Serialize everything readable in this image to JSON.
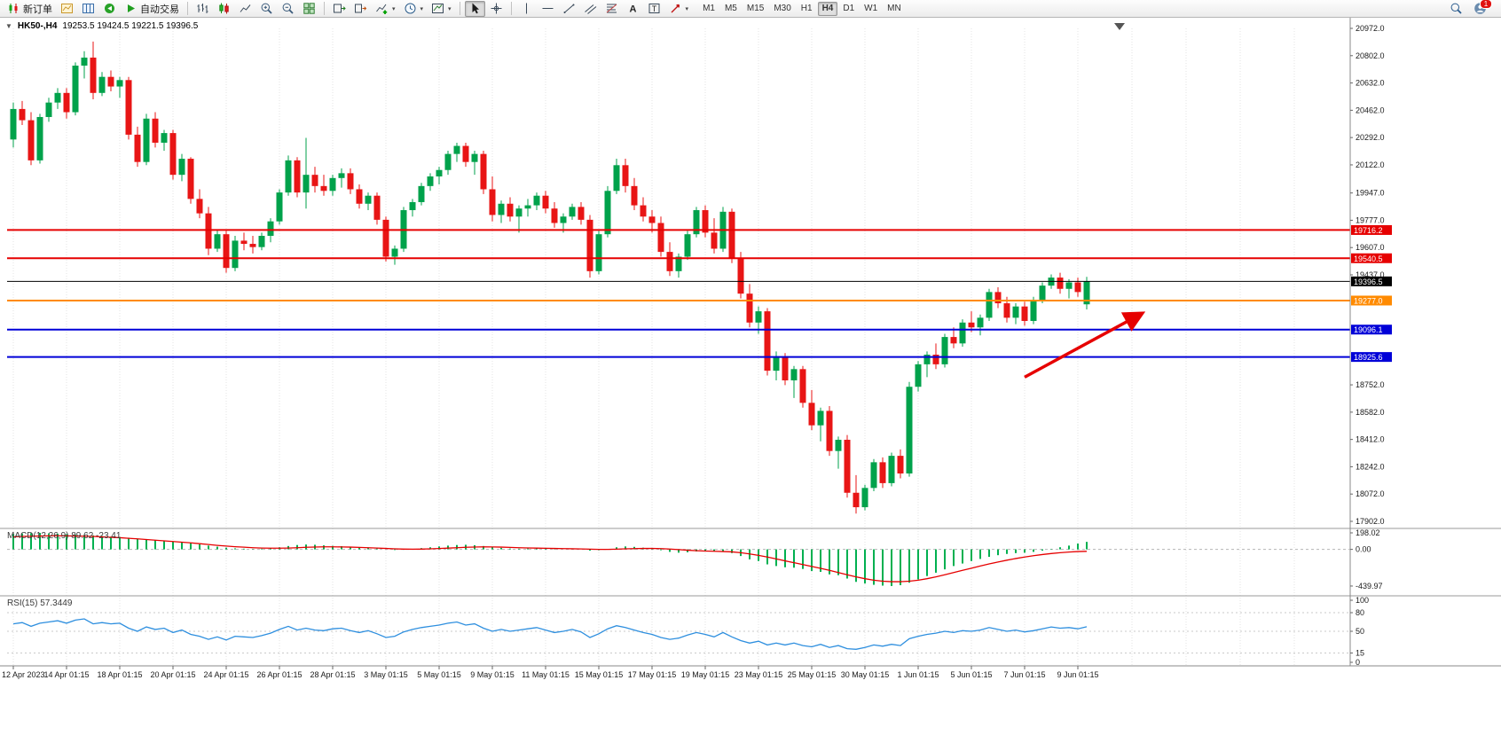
{
  "toolbar": {
    "new_order_label": "新订单",
    "autotrading_label": "自动交易",
    "timeframes": [
      "M1",
      "M5",
      "M15",
      "M30",
      "H1",
      "H4",
      "D1",
      "W1",
      "MN"
    ],
    "active_timeframe": "H4",
    "notification_badge": "1"
  },
  "chart": {
    "collapse_arrow": "▼",
    "symbol_period": "HK50-,H4",
    "ohlc": "19253.5 19424.5 19221.5 19396.5"
  },
  "chart_data": {
    "type": "candlestick",
    "symbol": "HK50-",
    "period": "H4",
    "colors": {
      "up": "#00a24b",
      "down": "#e81515",
      "macd_hist": "#00b050",
      "macd_signal": "#e60000",
      "rsi": "#2e8fdf",
      "grid": "#e3e3e3"
    },
    "price_axis": {
      "min": 17902.0,
      "max": 20972.0,
      "ticks": [
        20972.0,
        20802.0,
        20632.0,
        20462.0,
        20292.0,
        20122.0,
        19947.0,
        19777.0,
        19607.0,
        19437.0,
        18752.0,
        18582.0,
        18412.0,
        18242.0,
        18072.0,
        17902.0
      ]
    },
    "hlines": [
      {
        "price": 19716.2,
        "color": "#e60000",
        "width": 2
      },
      {
        "price": 19540.5,
        "color": "#e60000",
        "width": 2
      },
      {
        "price": 19396.5,
        "color": "#000000",
        "width": 1
      },
      {
        "price": 19277.0,
        "color": "#ff8a00",
        "width": 2
      },
      {
        "price": 19096.1,
        "color": "#0000d8",
        "width": 2
      },
      {
        "price": 18925.6,
        "color": "#0000d8",
        "width": 2
      }
    ],
    "candles": [
      [
        20280,
        20510,
        20230,
        20470
      ],
      [
        20470,
        20520,
        20370,
        20400
      ],
      [
        20400,
        20450,
        20120,
        20150
      ],
      [
        20150,
        20440,
        20130,
        20420
      ],
      [
        20420,
        20540,
        20390,
        20510
      ],
      [
        20510,
        20600,
        20470,
        20570
      ],
      [
        20570,
        20600,
        20410,
        20450
      ],
      [
        20450,
        20760,
        20430,
        20740
      ],
      [
        20740,
        20830,
        20660,
        20790
      ],
      [
        20790,
        20890,
        20530,
        20570
      ],
      [
        20570,
        20700,
        20550,
        20670
      ],
      [
        20670,
        20710,
        20580,
        20610
      ],
      [
        20610,
        20670,
        20540,
        20650
      ],
      [
        20650,
        20670,
        20280,
        20310
      ],
      [
        20310,
        20360,
        20110,
        20140
      ],
      [
        20140,
        20440,
        20120,
        20410
      ],
      [
        20410,
        20450,
        20230,
        20260
      ],
      [
        20260,
        20340,
        20210,
        20320
      ],
      [
        20320,
        20340,
        20030,
        20060
      ],
      [
        20060,
        20190,
        20020,
        20160
      ],
      [
        20160,
        20170,
        19880,
        19910
      ],
      [
        19910,
        19970,
        19790,
        19820
      ],
      [
        19820,
        19860,
        19560,
        19600
      ],
      [
        19600,
        19720,
        19580,
        19690
      ],
      [
        19690,
        19710,
        19450,
        19480
      ],
      [
        19480,
        19680,
        19460,
        19650
      ],
      [
        19650,
        19700,
        19590,
        19630
      ],
      [
        19630,
        19680,
        19570,
        19610
      ],
      [
        19610,
        19700,
        19590,
        19680
      ],
      [
        19680,
        19790,
        19640,
        19770
      ],
      [
        19770,
        19970,
        19750,
        19950
      ],
      [
        19950,
        20180,
        19930,
        20150
      ],
      [
        20150,
        20170,
        19920,
        19950
      ],
      [
        19950,
        20290,
        19850,
        20060
      ],
      [
        20060,
        20110,
        19950,
        19990
      ],
      [
        19990,
        20060,
        19930,
        19960
      ],
      [
        19960,
        20060,
        19930,
        20040
      ],
      [
        20040,
        20100,
        19980,
        20070
      ],
      [
        20070,
        20100,
        19940,
        19970
      ],
      [
        19970,
        20000,
        19850,
        19880
      ],
      [
        19880,
        19950,
        19840,
        19930
      ],
      [
        19930,
        19950,
        19750,
        19780
      ],
      [
        19780,
        19800,
        19520,
        19550
      ],
      [
        19550,
        19620,
        19500,
        19600
      ],
      [
        19600,
        19860,
        19580,
        19840
      ],
      [
        19840,
        19910,
        19800,
        19890
      ],
      [
        19890,
        20010,
        19870,
        19990
      ],
      [
        19990,
        20070,
        19960,
        20050
      ],
      [
        20050,
        20110,
        20000,
        20090
      ],
      [
        20090,
        20210,
        20060,
        20190
      ],
      [
        20190,
        20260,
        20140,
        20240
      ],
      [
        20240,
        20260,
        20110,
        20140
      ],
      [
        20140,
        20210,
        20060,
        20190
      ],
      [
        20190,
        20210,
        19940,
        19970
      ],
      [
        19970,
        20050,
        19770,
        19810
      ],
      [
        19810,
        19900,
        19760,
        19880
      ],
      [
        19880,
        19920,
        19770,
        19800
      ],
      [
        19800,
        19870,
        19700,
        19850
      ],
      [
        19850,
        19910,
        19800,
        19870
      ],
      [
        19870,
        19950,
        19840,
        19930
      ],
      [
        19930,
        19960,
        19820,
        19850
      ],
      [
        19850,
        19890,
        19730,
        19760
      ],
      [
        19760,
        19820,
        19700,
        19800
      ],
      [
        19800,
        19880,
        19780,
        19860
      ],
      [
        19860,
        19890,
        19750,
        19780
      ],
      [
        19780,
        19810,
        19420,
        19460
      ],
      [
        19460,
        19710,
        19440,
        19690
      ],
      [
        19690,
        19990,
        19670,
        19960
      ],
      [
        19960,
        20160,
        19940,
        20120
      ],
      [
        20120,
        20160,
        19950,
        19990
      ],
      [
        19990,
        20040,
        19840,
        19870
      ],
      [
        19870,
        19920,
        19770,
        19800
      ],
      [
        19800,
        19840,
        19700,
        19760
      ],
      [
        19760,
        19800,
        19550,
        19580
      ],
      [
        19580,
        19640,
        19430,
        19460
      ],
      [
        19460,
        19570,
        19420,
        19550
      ],
      [
        19550,
        19710,
        19530,
        19690
      ],
      [
        19690,
        19860,
        19670,
        19840
      ],
      [
        19840,
        19870,
        19670,
        19700
      ],
      [
        19700,
        19790,
        19570,
        19600
      ],
      [
        19600,
        19860,
        19580,
        19830
      ],
      [
        19830,
        19850,
        19510,
        19540
      ],
      [
        19540,
        19580,
        19290,
        19320
      ],
      [
        19320,
        19380,
        19110,
        19140
      ],
      [
        19140,
        19240,
        19070,
        19210
      ],
      [
        19210,
        19230,
        18810,
        18840
      ],
      [
        18840,
        18960,
        18780,
        18930
      ],
      [
        18930,
        18950,
        18750,
        18780
      ],
      [
        18780,
        18870,
        18670,
        18850
      ],
      [
        18850,
        18870,
        18610,
        18640
      ],
      [
        18640,
        18720,
        18470,
        18500
      ],
      [
        18500,
        18610,
        18400,
        18590
      ],
      [
        18590,
        18620,
        18310,
        18340
      ],
      [
        18340,
        18430,
        18230,
        18410
      ],
      [
        18410,
        18440,
        18050,
        18080
      ],
      [
        18080,
        18190,
        17950,
        17990
      ],
      [
        17990,
        18130,
        17970,
        18110
      ],
      [
        18110,
        18290,
        18090,
        18270
      ],
      [
        18270,
        18300,
        18110,
        18140
      ],
      [
        18140,
        18330,
        18120,
        18310
      ],
      [
        18310,
        18350,
        18170,
        18200
      ],
      [
        18200,
        18770,
        18180,
        18740
      ],
      [
        18740,
        18900,
        18710,
        18880
      ],
      [
        18880,
        18960,
        18800,
        18940
      ],
      [
        18940,
        19010,
        18850,
        18880
      ],
      [
        18880,
        19070,
        18860,
        19050
      ],
      [
        19050,
        19110,
        18980,
        19010
      ],
      [
        19010,
        19160,
        18990,
        19140
      ],
      [
        19140,
        19210,
        19080,
        19110
      ],
      [
        19110,
        19190,
        19060,
        19170
      ],
      [
        19170,
        19350,
        19150,
        19330
      ],
      [
        19330,
        19360,
        19230,
        19260
      ],
      [
        19260,
        19300,
        19140,
        19170
      ],
      [
        19170,
        19260,
        19130,
        19240
      ],
      [
        19240,
        19270,
        19120,
        19150
      ],
      [
        19150,
        19300,
        19130,
        19280
      ],
      [
        19280,
        19390,
        19260,
        19370
      ],
      [
        19370,
        19440,
        19350,
        19420
      ],
      [
        19420,
        19450,
        19320,
        19350
      ],
      [
        19350,
        19410,
        19290,
        19390
      ],
      [
        19390,
        19420,
        19300,
        19330
      ],
      [
        19253.5,
        19424.5,
        19221.5,
        19396.5
      ]
    ],
    "time_labels": [
      {
        "text": "12 Apr 2023",
        "i": 0
      },
      {
        "text": "14 Apr 01:15",
        "i": 6
      },
      {
        "text": "18 Apr 01:15",
        "i": 12
      },
      {
        "text": "20 Apr 01:15",
        "i": 18
      },
      {
        "text": "24 Apr 01:15",
        "i": 24
      },
      {
        "text": "26 Apr 01:15",
        "i": 30
      },
      {
        "text": "28 Apr 01:15",
        "i": 36
      },
      {
        "text": "3 May 01:15",
        "i": 42
      },
      {
        "text": "5 May 01:15",
        "i": 48
      },
      {
        "text": "9 May 01:15",
        "i": 54
      },
      {
        "text": "11 May 01:15",
        "i": 60
      },
      {
        "text": "15 May 01:15",
        "i": 66
      },
      {
        "text": "17 May 01:15",
        "i": 72
      },
      {
        "text": "19 May 01:15",
        "i": 78
      },
      {
        "text": "23 May 01:15",
        "i": 84
      },
      {
        "text": "25 May 01:15",
        "i": 90
      },
      {
        "text": "30 May 01:15",
        "i": 96
      },
      {
        "text": "1 Jun 01:15",
        "i": 102
      },
      {
        "text": "5 Jun 01:15",
        "i": 108
      },
      {
        "text": "7 Jun 01:15",
        "i": 114
      },
      {
        "text": "9 Jun 01:15",
        "i": 120
      }
    ],
    "macd": {
      "label": "MACD(12,26,9) 89.62 -23.41",
      "ticks": [
        198.02,
        0,
        -439.97
      ],
      "histogram": [
        185,
        190,
        195,
        198,
        192,
        188,
        182,
        178,
        172,
        168,
        160,
        152,
        148,
        140,
        128,
        120,
        112,
        104,
        95,
        88,
        75,
        60,
        45,
        32,
        20,
        12,
        8,
        5,
        8,
        14,
        25,
        40,
        52,
        58,
        55,
        48,
        42,
        38,
        30,
        22,
        18,
        10,
        0,
        -8,
        -5,
        5,
        15,
        25,
        35,
        45,
        52,
        55,
        50,
        40,
        28,
        18,
        10,
        8,
        10,
        14,
        12,
        5,
        0,
        2,
        0,
        -15,
        -10,
        5,
        25,
        35,
        30,
        20,
        8,
        -10,
        -30,
        -40,
        -35,
        -25,
        -20,
        -25,
        -20,
        -45,
        -80,
        -120,
        -140,
        -180,
        -200,
        -215,
        -220,
        -235,
        -260,
        -270,
        -300,
        -310,
        -350,
        -390,
        -410,
        -425,
        -435,
        -440,
        -430,
        -400,
        -360,
        -320,
        -280,
        -240,
        -200,
        -170,
        -140,
        -115,
        -90,
        -70,
        -55,
        -45,
        -40,
        -30,
        -15,
        5,
        25,
        45,
        70,
        90
      ],
      "signal": [
        150,
        155,
        158,
        160,
        162,
        163,
        162,
        160,
        158,
        155,
        150,
        145,
        140,
        133,
        126,
        118,
        110,
        102,
        94,
        86,
        78,
        68,
        58,
        48,
        40,
        32,
        26,
        20,
        16,
        14,
        14,
        16,
        20,
        25,
        28,
        30,
        30,
        29,
        27,
        24,
        20,
        16,
        11,
        6,
        3,
        2,
        3,
        6,
        10,
        15,
        20,
        25,
        28,
        30,
        29,
        27,
        24,
        20,
        17,
        15,
        13,
        11,
        9,
        7,
        5,
        2,
        0,
        0,
        2,
        6,
        9,
        11,
        11,
        9,
        4,
        -3,
        -10,
        -16,
        -20,
        -23,
        -26,
        -30,
        -40,
        -55,
        -72,
        -92,
        -115,
        -138,
        -160,
        -182,
        -205,
        -228,
        -252,
        -278,
        -305,
        -330,
        -352,
        -370,
        -382,
        -388,
        -388,
        -382,
        -370,
        -352,
        -330,
        -305,
        -278,
        -252,
        -226,
        -200,
        -175,
        -152,
        -130,
        -110,
        -92,
        -76,
        -62,
        -50,
        -40,
        -32,
        -26,
        -23.41
      ]
    },
    "rsi": {
      "label": "RSI(15) 57.3449",
      "ticks": [
        100,
        80,
        50,
        15,
        0
      ],
      "levels": [
        80,
        50,
        15
      ],
      "values": [
        62,
        64,
        58,
        63,
        65,
        67,
        63,
        68,
        70,
        62,
        64,
        62,
        63,
        55,
        50,
        57,
        53,
        55,
        48,
        52,
        45,
        42,
        37,
        41,
        36,
        42,
        41,
        40,
        43,
        47,
        53,
        58,
        52,
        55,
        52,
        51,
        54,
        55,
        51,
        48,
        51,
        46,
        40,
        42,
        49,
        53,
        56,
        58,
        60,
        63,
        65,
        60,
        62,
        55,
        50,
        53,
        50,
        52,
        54,
        56,
        52,
        48,
        50,
        53,
        49,
        40,
        46,
        54,
        59,
        56,
        52,
        48,
        45,
        40,
        37,
        39,
        44,
        48,
        45,
        41,
        48,
        41,
        35,
        31,
        34,
        28,
        31,
        28,
        31,
        27,
        25,
        29,
        24,
        27,
        22,
        21,
        24,
        28,
        26,
        29,
        27,
        38,
        42,
        45,
        47,
        50,
        48,
        51,
        50,
        52,
        56,
        53,
        50,
        52,
        49,
        51,
        54,
        57,
        55,
        56,
        54,
        57.34
      ]
    },
    "arrow": {
      "from_index": 114,
      "from_price": 18800,
      "to_index": 127,
      "to_price": 19190,
      "color": "#e60000"
    }
  }
}
